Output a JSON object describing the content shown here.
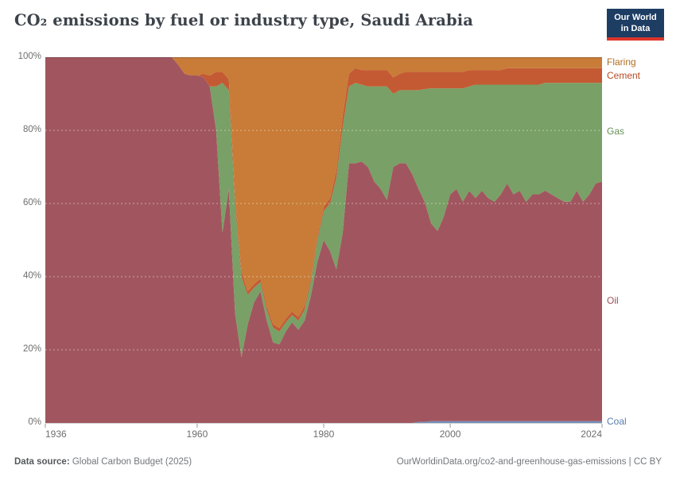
{
  "header": {
    "title": "CO₂ emissions by fuel or industry type, Saudi Arabia",
    "logo": {
      "line1": "Our World",
      "line2": "in Data",
      "bg": "#1d3d63",
      "accent": "#dc352c"
    }
  },
  "footer": {
    "source_label": "Data source:",
    "source_value": " Global Carbon Budget (2025)",
    "credit": "OurWorldinData.org/co2-and-greenhouse-gas-emissions | CC BY"
  },
  "chart_data": {
    "type": "area",
    "stacked": true,
    "normalized_percent": true,
    "title": "CO₂ emissions by fuel or industry type, Saudi Arabia",
    "xlabel": "",
    "ylabel": "",
    "ylim": [
      0,
      100
    ],
    "grid": "dashed-horizontal",
    "legend_position": "right-edge-labels",
    "x_ticks": [
      "1936",
      "1960",
      "1980",
      "2000",
      "2024"
    ],
    "x_tick_years": [
      1936,
      1960,
      1980,
      2000,
      2024
    ],
    "y_ticks": [
      "0%",
      "20%",
      "40%",
      "60%",
      "80%",
      "100%"
    ],
    "y_tick_values": [
      0,
      20,
      40,
      60,
      80,
      100
    ],
    "years": [
      1936,
      1937,
      1938,
      1939,
      1940,
      1941,
      1942,
      1943,
      1944,
      1945,
      1946,
      1947,
      1948,
      1949,
      1950,
      1951,
      1952,
      1953,
      1954,
      1955,
      1956,
      1957,
      1958,
      1959,
      1960,
      1961,
      1962,
      1963,
      1964,
      1965,
      1966,
      1967,
      1968,
      1969,
      1970,
      1971,
      1972,
      1973,
      1974,
      1975,
      1976,
      1977,
      1978,
      1979,
      1980,
      1981,
      1982,
      1983,
      1984,
      1985,
      1986,
      1987,
      1988,
      1989,
      1990,
      1991,
      1992,
      1993,
      1994,
      1995,
      1996,
      1997,
      1998,
      1999,
      2000,
      2001,
      2002,
      2003,
      2004,
      2005,
      2006,
      2007,
      2008,
      2009,
      2010,
      2011,
      2012,
      2013,
      2014,
      2015,
      2016,
      2017,
      2018,
      2019,
      2020,
      2021,
      2022,
      2023,
      2024
    ],
    "series": [
      {
        "name": "Coal",
        "area_color": "#6f8fbb",
        "label_color": "#577eae",
        "values": [
          0,
          0,
          0,
          0,
          0,
          0,
          0,
          0,
          0,
          0,
          0,
          0,
          0,
          0,
          0,
          0,
          0,
          0,
          0,
          0,
          0,
          0,
          0,
          0,
          0,
          0,
          0,
          0,
          0,
          0,
          0,
          0,
          0,
          0,
          0,
          0,
          0,
          0,
          0,
          0,
          0,
          0,
          0,
          0,
          0,
          0,
          0,
          0,
          0,
          0,
          0,
          0,
          0,
          0,
          0,
          0,
          0,
          0,
          0,
          0.3,
          0.3,
          0.5,
          0.5,
          0.5,
          0.5,
          0.5,
          0.5,
          0.5,
          0.5,
          0.5,
          0.5,
          0.5,
          0.5,
          0.5,
          0.5,
          0.5,
          0.5,
          0.5,
          0.5,
          0.5,
          0.5,
          0.5,
          0.5,
          0.5,
          0.5,
          0.5,
          0.5,
          0.5,
          0.5
        ]
      },
      {
        "name": "Oil",
        "area_color": "#a1565f",
        "label_color": "#9f4e59",
        "values": [
          100,
          100,
          100,
          100,
          100,
          100,
          100,
          100,
          100,
          100,
          100,
          100,
          100,
          100,
          100,
          100,
          100,
          100,
          100,
          100,
          100,
          98,
          95.5,
          95,
          95,
          94.5,
          92,
          80,
          52,
          64,
          30,
          18,
          27,
          33,
          36,
          28,
          22,
          21.5,
          25,
          27.5,
          25.5,
          28,
          35,
          44,
          50,
          47,
          42,
          52,
          71,
          71,
          71.5,
          70,
          66,
          64,
          61,
          70,
          71,
          71,
          68,
          63.7,
          60,
          54,
          52,
          56,
          62,
          63.5,
          60,
          63,
          61,
          63,
          61,
          60,
          62,
          65,
          62,
          63,
          60,
          62,
          62,
          63,
          62,
          61,
          60,
          60,
          63,
          60,
          62,
          65,
          65.5
        ]
      },
      {
        "name": "Gas",
        "area_color": "#79a066",
        "label_color": "#669157",
        "values": [
          0,
          0,
          0,
          0,
          0,
          0,
          0,
          0,
          0,
          0,
          0,
          0,
          0,
          0,
          0,
          0,
          0,
          0,
          0,
          0,
          0,
          0,
          0,
          0,
          0,
          0,
          0,
          12,
          41,
          27,
          30,
          22,
          8,
          4,
          2.5,
          3,
          4,
          3.5,
          2.5,
          2,
          2.5,
          3,
          4,
          6,
          8,
          13,
          25,
          29,
          21,
          22,
          21,
          22,
          26,
          28,
          31,
          20,
          20,
          20,
          23,
          27,
          31,
          37,
          39,
          35,
          29,
          27.5,
          31,
          28.5,
          31,
          29,
          31,
          32,
          30,
          27,
          30,
          29,
          32,
          30,
          30,
          29.5,
          30.5,
          31.5,
          32.5,
          32.5,
          29.5,
          32.5,
          30.5,
          27.5,
          27
        ]
      },
      {
        "name": "Cement",
        "area_color": "#c45a33",
        "label_color": "#b44a24",
        "values": [
          0,
          0,
          0,
          0,
          0,
          0,
          0,
          0,
          0,
          0,
          0,
          0,
          0,
          0,
          0,
          0,
          0,
          0,
          0,
          0,
          0,
          0,
          0,
          0,
          0,
          1,
          3,
          4,
          3,
          3,
          2,
          1.5,
          1,
          1,
          1,
          1,
          1,
          1,
          1,
          1,
          1,
          1,
          1,
          1,
          1,
          1.5,
          2,
          3,
          3.5,
          4,
          4,
          4.5,
          4.5,
          4.5,
          4.5,
          4.5,
          4.5,
          5,
          5,
          5,
          4.7,
          4.5,
          4.5,
          4.5,
          4.5,
          4.5,
          4.5,
          4.5,
          4,
          4,
          4,
          4,
          4,
          4.5,
          4.5,
          4.5,
          4.5,
          4.5,
          4.5,
          4,
          4,
          4,
          4,
          4,
          4,
          4,
          4,
          4,
          4
        ]
      },
      {
        "name": "Flaring",
        "area_color": "#c87c37",
        "label_color": "#b06e21",
        "values": [
          0,
          0,
          0,
          0,
          0,
          0,
          0,
          0,
          0,
          0,
          0,
          0,
          0,
          0,
          0,
          0,
          0,
          0,
          0,
          0,
          0,
          2,
          4.5,
          5,
          5,
          4.5,
          5,
          4,
          4,
          6,
          38,
          58.5,
          64,
          62,
          60.5,
          68,
          73,
          74,
          71.5,
          69.5,
          71,
          68,
          60,
          49,
          41,
          38.5,
          31,
          16,
          4.5,
          3,
          3.5,
          3.5,
          3.5,
          3.5,
          3.5,
          5.5,
          4.5,
          4,
          4,
          4,
          4,
          4,
          4,
          4,
          4,
          4,
          4,
          3.5,
          3.5,
          3.5,
          3.5,
          3.5,
          3.5,
          3,
          3,
          3,
          3,
          3,
          3,
          3,
          3,
          3,
          3,
          3,
          3,
          3,
          3,
          3,
          3
        ]
      }
    ]
  }
}
